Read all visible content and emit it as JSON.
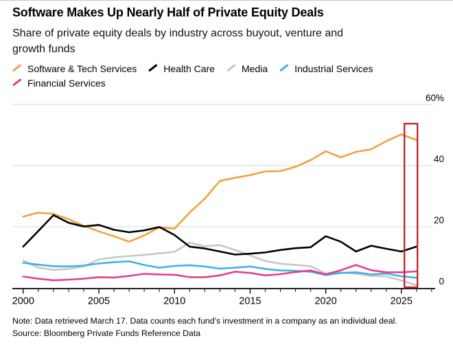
{
  "header": {
    "title": "Software Makes Up Nearly Half of Private Equity Deals",
    "subtitle_line1": "Share of private equity deals by industry across buyout, venture and",
    "subtitle_line2": "growth funds"
  },
  "chart_data": {
    "type": "line",
    "title": "Software Makes Up Nearly Half of Private Equity Deals",
    "subtitle": "Share of private equity deals by industry across buyout, venture and growth funds",
    "x": [
      2000,
      2001,
      2002,
      2003,
      2004,
      2005,
      2006,
      2007,
      2008,
      2009,
      2010,
      2011,
      2012,
      2013,
      2014,
      2015,
      2016,
      2017,
      2018,
      2019,
      2020,
      2021,
      2022,
      2023,
      2024,
      2025,
      2026
    ],
    "series": [
      {
        "name": "Software & Tech Services",
        "color": "#f3a13b",
        "values": [
          23.3,
          24.6,
          24.2,
          22.5,
          20.3,
          18.5,
          16.9,
          15.1,
          17.2,
          19.8,
          19.4,
          24.6,
          29.2,
          35.0,
          36.0,
          36.9,
          38.1,
          38.2,
          39.6,
          41.8,
          44.7,
          42.7,
          44.5,
          45.3,
          48.0,
          50.2,
          48.4
        ]
      },
      {
        "name": "Health Care",
        "color": "#000000",
        "values": [
          13.5,
          18.6,
          23.8,
          21.3,
          20.1,
          20.6,
          19.0,
          18.2,
          18.8,
          19.9,
          17.3,
          13.5,
          12.9,
          11.9,
          10.9,
          11.2,
          11.6,
          12.4,
          13.0,
          13.3,
          16.9,
          15.1,
          11.9,
          13.8,
          12.8,
          11.9,
          13.5
        ]
      },
      {
        "name": "Media",
        "color": "#c7c7c7",
        "values": [
          9.0,
          6.6,
          5.9,
          6.2,
          7.0,
          9.3,
          10.0,
          10.4,
          10.8,
          11.3,
          11.8,
          14.8,
          13.6,
          14.0,
          12.4,
          10.6,
          8.8,
          7.9,
          7.5,
          7.1,
          4.7,
          5.1,
          4.6,
          3.9,
          3.8,
          2.4,
          0.9
        ]
      },
      {
        "name": "Industrial Services",
        "color": "#3fb1e8",
        "values": [
          8.2,
          7.6,
          7.1,
          7.0,
          7.3,
          8.0,
          8.4,
          8.7,
          7.5,
          6.6,
          7.2,
          7.4,
          7.0,
          6.3,
          6.6,
          7.0,
          6.2,
          5.7,
          5.6,
          5.3,
          4.2,
          4.9,
          5.1,
          4.4,
          4.7,
          3.8,
          3.3
        ]
      },
      {
        "name": "Financial Services",
        "color": "#e63d8f",
        "values": [
          3.7,
          3.0,
          2.5,
          2.7,
          3.0,
          3.5,
          3.4,
          3.9,
          4.6,
          4.4,
          4.3,
          3.5,
          3.5,
          4.1,
          5.3,
          4.9,
          4.1,
          4.5,
          5.2,
          5.7,
          4.4,
          5.8,
          7.5,
          5.8,
          5.1,
          5.1,
          5.4
        ]
      }
    ],
    "y_ticks": [
      {
        "value": 60,
        "label": "60%"
      },
      {
        "value": 40,
        "label": "40"
      },
      {
        "value": 20,
        "label": "20"
      },
      {
        "value": 0,
        "label": "0"
      }
    ],
    "x_tick_labels": [
      2000,
      2005,
      2010,
      2015,
      2020,
      2025
    ],
    "xlim": [
      1999.3,
      2027.3
    ],
    "ylim": [
      0,
      60
    ],
    "grid": "horizontal",
    "legend_position": "top",
    "annotation": {
      "type": "highlight-box",
      "color": "#c7232c",
      "x_year_range": [
        2025.2,
        2026.06
      ],
      "y_value_range": [
        0.2,
        53.7
      ]
    }
  },
  "footer": {
    "note": "Note: Data retrieved March 17. Data counts each fund's investment in a company as an individual deal.",
    "source": "Source: Bloomberg Private Funds Reference Data"
  }
}
